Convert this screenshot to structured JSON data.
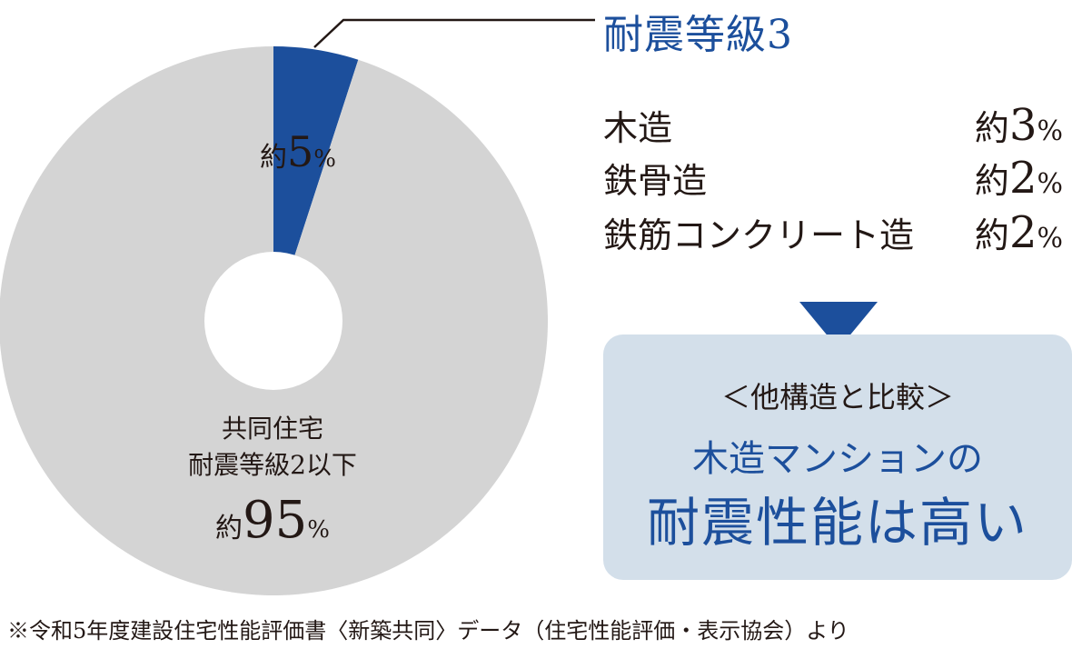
{
  "chart_data": {
    "type": "pie",
    "slices": [
      {
        "label": "耐震等級3",
        "value": 5,
        "color": "#1c4f9c"
      },
      {
        "label": "共同住宅 耐震等級2以下",
        "value": 95,
        "color": "#d4d4d4"
      }
    ],
    "grid": false
  },
  "labels": {
    "small_prefix": "約",
    "small_num": "5",
    "small_pct": "%",
    "big_line1": "共同住宅",
    "big_line2": "耐震等級2以下",
    "big_prefix": "約",
    "big_num": "95",
    "big_pct": "%"
  },
  "callout": {
    "title": "耐震等級3",
    "breakdown": [
      {
        "label": "木造",
        "prefix": "約",
        "num": "3",
        "pct": "%"
      },
      {
        "label": "鉄骨造",
        "prefix": "約",
        "num": "2",
        "pct": "%"
      },
      {
        "label": "鉄筋コンクリート造",
        "prefix": "約",
        "num": "2",
        "pct": "%"
      }
    ]
  },
  "comparison": {
    "subtitle": "＜他構造と比較＞",
    "line1": "木造マンションの",
    "line2": "耐震性能は高い"
  },
  "footnote": "※令和5年度建設住宅性能評価書〈新築共同〉データ（住宅性能評価・表示協会）より",
  "colors": {
    "accent": "#1c4f9c",
    "grey": "#d4d4d4",
    "box": "#d3dfea"
  }
}
